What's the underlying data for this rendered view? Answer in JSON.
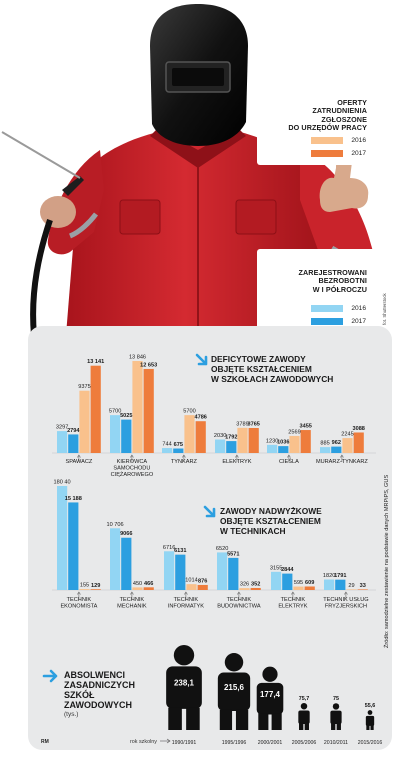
{
  "legend_offers": {
    "title_lines": [
      "OFERTY",
      "ZATRUDNIENIA",
      "ZGŁOSZONE",
      "DO URZĘDÓW PRACY"
    ],
    "items": [
      {
        "label": "2016",
        "color": "#f9c18c"
      },
      {
        "label": "2017",
        "color": "#ee7c3c"
      }
    ]
  },
  "legend_unemployed": {
    "title_lines": [
      "ZAREJESTROWANI",
      "BEZROBOTNI",
      "W I PÓŁROCZU"
    ],
    "items": [
      {
        "label": "2016",
        "color": "#92d5f3"
      },
      {
        "label": "2017",
        "color": "#2c9fe0"
      }
    ]
  },
  "photo_credit": "fot. Shutterstock",
  "source_text": "Źródło: samodzielne zestawienie na podstawie danych MRPiPS, GUS",
  "author_tag": "RM",
  "colors": {
    "unemployed_2016": "#92d5f3",
    "unemployed_2017": "#2c9fe0",
    "offers_2016": "#f9c18c",
    "offers_2017": "#ee7c3c",
    "suit_red": "#c8222b",
    "panel_bg": "#e8e9ea",
    "arrow_blue": "#2c9fe0"
  },
  "section1": {
    "title_lines": [
      "DEFICYTOWE ZAWODY",
      "OBJĘTE KSZTAŁCENIEM",
      "W SZKOŁACH ZAWODOWYCH"
    ]
  },
  "section2": {
    "title_lines": [
      "ZAWODY NADWYŻKOWE",
      "OBJĘTE KSZTAŁCENIEM",
      "W TECHNIKACH"
    ]
  },
  "section3": {
    "title_lines": [
      "ABSOLWENCI",
      "ZASADNICZYCH",
      "SZKÓŁ",
      "ZAWODOWYCH"
    ],
    "unit": "(tys.)",
    "axis_label": "rok szkolny"
  },
  "chart_data": [
    {
      "type": "bar",
      "title": "DEFICYTOWE ZAWODY OBJĘTE KSZTAŁCENIEM W SZKOŁACH ZAWODOWYCH",
      "categories": [
        [
          "SPAWACZ"
        ],
        [
          "KIEROWCA",
          "SAMOCHODU",
          "CIĘŻAROWEGO"
        ],
        [
          "TYNKARZ"
        ],
        [
          "ELEKTRYK"
        ],
        [
          "CIEŚLA"
        ],
        [
          "MURARZ-TYNKARZ"
        ]
      ],
      "series": [
        {
          "name": "ZAREJESTROWANI BEZROBOTNI W I PÓŁROCZU 2016",
          "values": [
            3297,
            5700,
            744,
            2030,
            1230,
            885
          ],
          "labels": [
            "3297",
            "5700",
            "744",
            "2030",
            "1230",
            "885"
          ]
        },
        {
          "name": "ZAREJESTROWANI BEZROBOTNI W I PÓŁROCZU 2017",
          "values": [
            2794,
            5025,
            675,
            1792,
            1036,
            962
          ],
          "labels": [
            "2794",
            "5025",
            "675",
            "1792",
            "1036",
            "962"
          ]
        },
        {
          "name": "OFERTY ZATRUDNIENIA ZGŁOSZONE DO URZĘDÓW PRACY 2016",
          "values": [
            9375,
            13846,
            5700,
            3789,
            2569,
            2245
          ],
          "labels": [
            "9375",
            "13 846",
            "5700",
            "3789",
            "2569",
            "2245"
          ]
        },
        {
          "name": "OFERTY ZATRUDNIENIA ZGŁOSZONE DO URZĘDÓW PRACY 2017",
          "values": [
            13141,
            12653,
            4786,
            3765,
            3455,
            3088
          ],
          "labels": [
            "13 141",
            "12 653",
            "4786",
            "3765",
            "3455",
            "3088"
          ]
        }
      ]
    },
    {
      "type": "bar",
      "title": "ZAWODY NADWYŻKOWE OBJĘTE KSZTAŁCENIEM W TECHNIKACH",
      "categories": [
        [
          "TECHNIK",
          "EKONOMISTA"
        ],
        [
          "TECHNIK",
          "MECHANIK"
        ],
        [
          "TECHNIK",
          "INFORMATYK"
        ],
        [
          "TECHNIK",
          "BUDOWNICTWA"
        ],
        [
          "TECHNIK",
          "ELEKTRYK"
        ],
        [
          "TECHNIK USŁUG",
          "FRYZJERSKICH"
        ]
      ],
      "series": [
        {
          "name": "ZAREJESTROWANI BEZROBOTNI W I PÓŁROCZU 2016",
          "values": [
            18040,
            10706,
            6716,
            6520,
            3155,
            1820
          ],
          "labels": [
            "180 40",
            "10 706",
            "6716",
            "6520",
            "3155",
            "1820"
          ]
        },
        {
          "name": "ZAREJESTROWANI BEZROBOTNI W I PÓŁROCZU 2017",
          "values": [
            15188,
            9066,
            6131,
            5571,
            2844,
            1791
          ],
          "labels": [
            "15 188",
            "9066",
            "6131",
            "5571",
            "2844",
            "1791"
          ]
        },
        {
          "name": "OFERTY ZATRUDNIENIA ZGŁOSZONE DO URZĘDÓW PRACY 2016",
          "values": [
            155,
            450,
            1014,
            326,
            595,
            29
          ],
          "labels": [
            "155",
            "450",
            "1014",
            "326",
            "595",
            "29"
          ]
        },
        {
          "name": "OFERTY ZATRUDNIENIA ZGŁOSZONE DO URZĘDÓW PRACY 2017",
          "values": [
            129,
            466,
            876,
            352,
            609,
            33
          ],
          "labels": [
            "129",
            "466",
            "876",
            "352",
            "609",
            "33"
          ]
        }
      ]
    },
    {
      "type": "bar",
      "title": "ABSOLWENCI ZASADNICZYCH SZKÓŁ ZAWODOWYCH (tys.)",
      "xlabel": "rok szkolny",
      "categories": [
        "1990/1991",
        "1995/1996",
        "2000/2001",
        "2005/2006",
        "2010/2011",
        "2015/2016"
      ],
      "values": [
        238.1,
        215.6,
        177.4,
        75.7,
        75,
        55.6
      ],
      "labels": [
        "238,1",
        "215,6",
        "177,4",
        "75,7",
        "75",
        "55,6"
      ]
    }
  ]
}
